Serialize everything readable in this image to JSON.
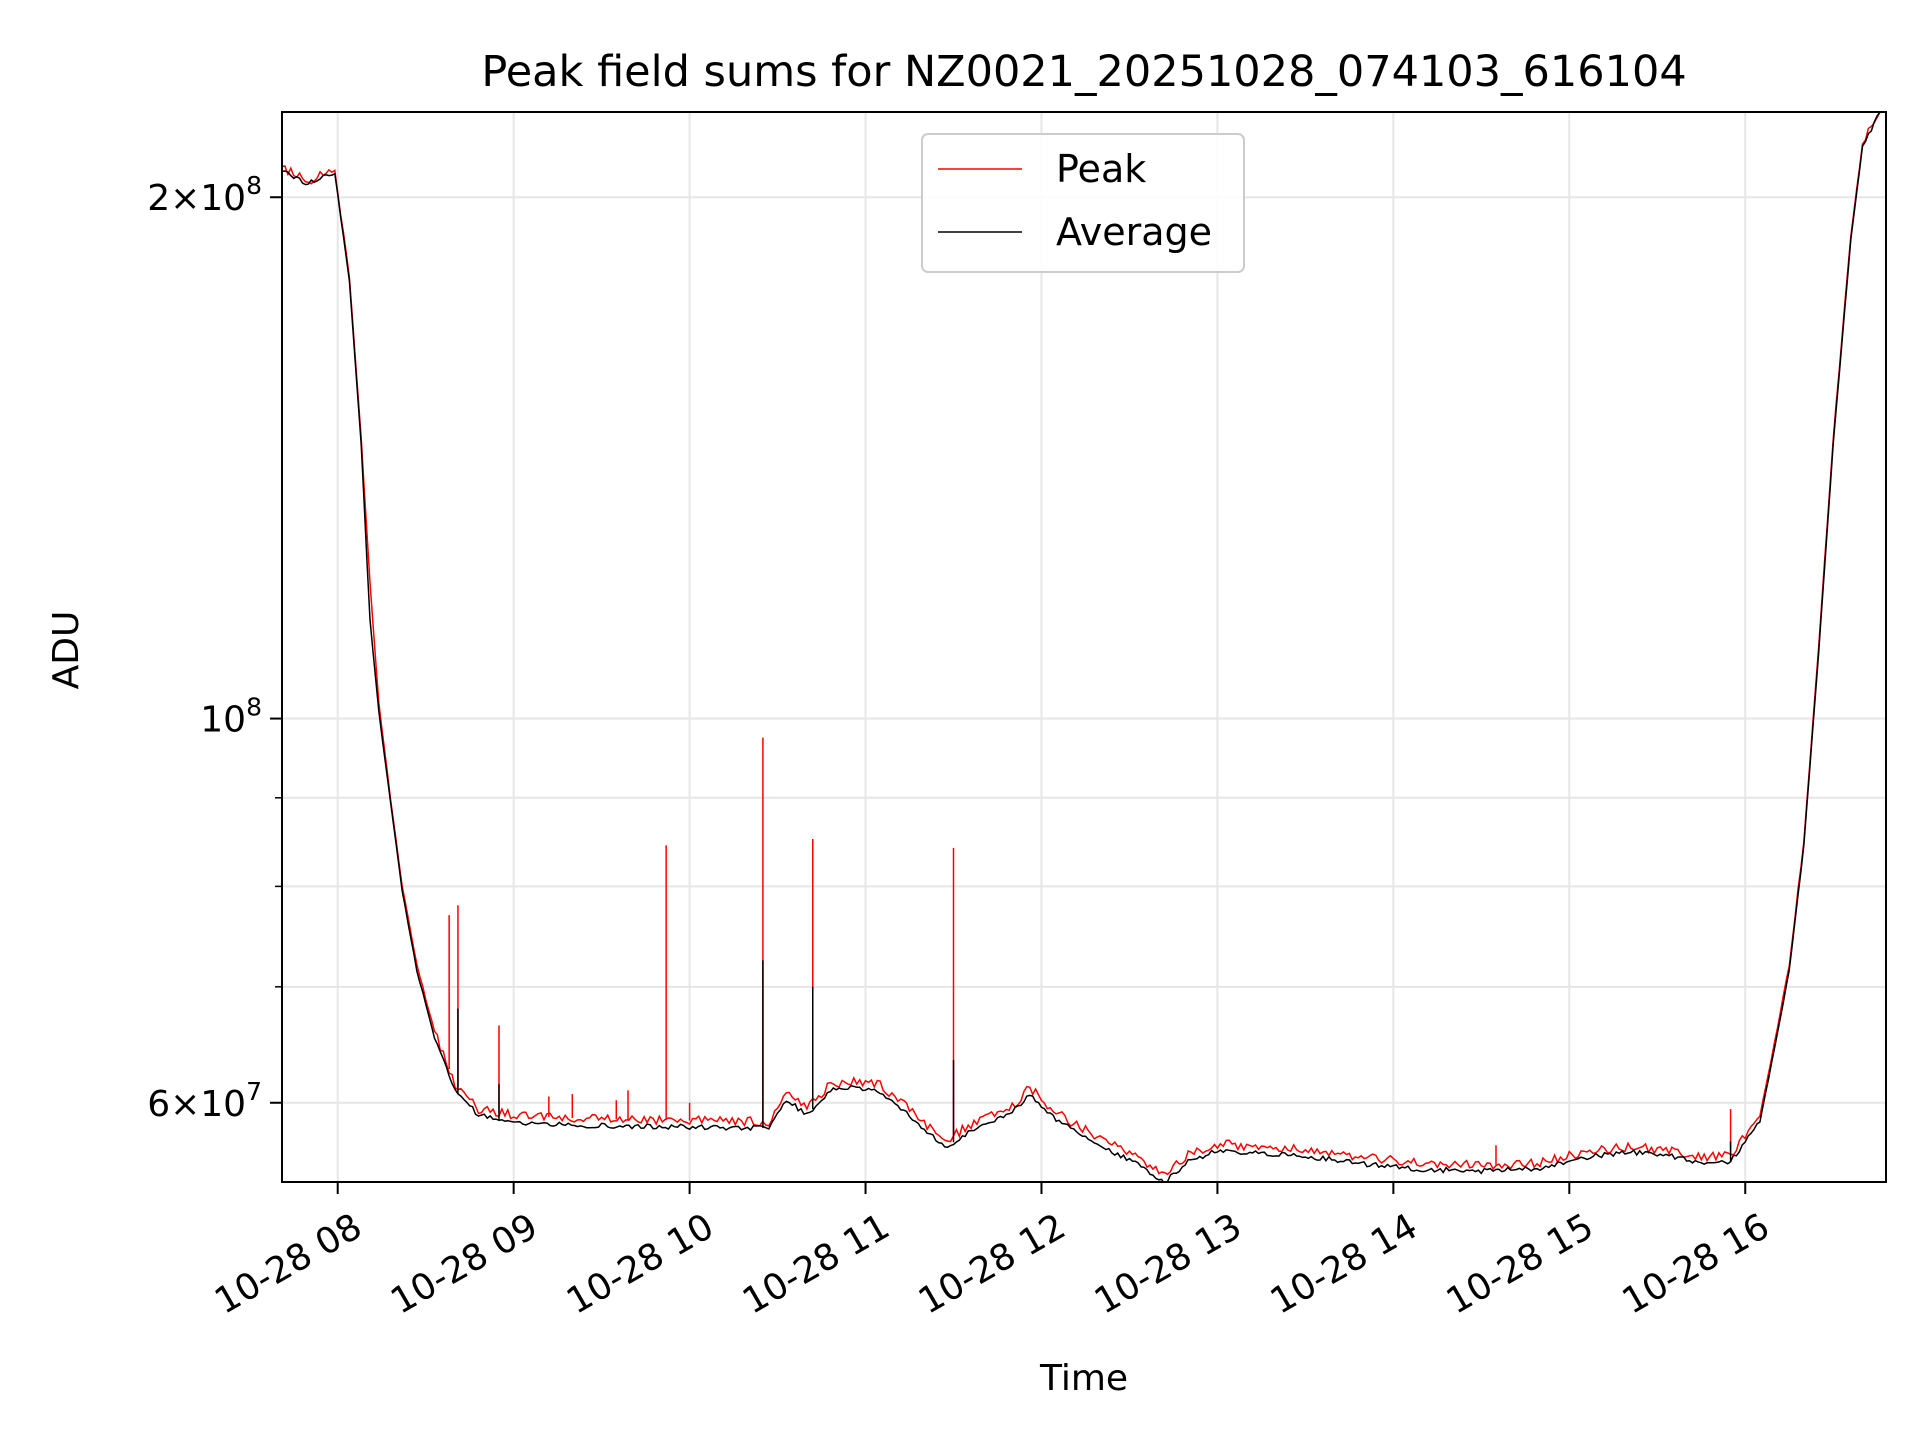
{
  "chart_data": {
    "type": "line",
    "title": "Peak field sums for NZ0021_20251028_074103_616104",
    "xlabel": "Time",
    "ylabel": "ADU",
    "x_scale": "time",
    "y_scale": "log",
    "xlim": [
      "2025-10-28 07:41",
      "2025-10-28 16:48"
    ],
    "ylim": [
      54000000,
      224000000
    ],
    "grid": true,
    "legend_placement": "upper center",
    "x_ticks": [
      {
        "value": "2025-10-28 08:00",
        "label": "10-28 08"
      },
      {
        "value": "2025-10-28 09:00",
        "label": "10-28 09"
      },
      {
        "value": "2025-10-28 10:00",
        "label": "10-28 10"
      },
      {
        "value": "2025-10-28 11:00",
        "label": "10-28 11"
      },
      {
        "value": "2025-10-28 12:00",
        "label": "10-28 12"
      },
      {
        "value": "2025-10-28 13:00",
        "label": "10-28 13"
      },
      {
        "value": "2025-10-28 14:00",
        "label": "10-28 14"
      },
      {
        "value": "2025-10-28 15:00",
        "label": "10-28 15"
      },
      {
        "value": "2025-10-28 16:00",
        "label": "10-28 16"
      }
    ],
    "y_major_ticks": [
      {
        "value": 60000000,
        "mantissa": "6",
        "exponent": "7",
        "prefix": "6×10"
      },
      {
        "value": 100000000,
        "mantissa": "",
        "exponent": "8",
        "prefix": "10"
      },
      {
        "value": 200000000,
        "mantissa": "2",
        "exponent": "8",
        "prefix": "2×10"
      }
    ],
    "y_minor_ticks": [
      70000000,
      80000000,
      90000000
    ],
    "series": [
      {
        "name": "Peak",
        "color": "#ff0000",
        "points": [
          [
            "2025-10-28 07:41",
            208000000
          ],
          [
            "2025-10-28 07:50",
            204000000
          ],
          [
            "2025-10-28 07:56",
            207000000
          ],
          [
            "2025-10-28 07:59",
            207000000
          ],
          [
            "2025-10-28 08:04",
            180000000
          ],
          [
            "2025-10-28 08:08",
            145000000
          ],
          [
            "2025-10-28 08:11",
            120000000
          ],
          [
            "2025-10-28 08:14",
            102000000
          ],
          [
            "2025-10-28 08:18",
            90000000
          ],
          [
            "2025-10-28 08:22",
            80000000
          ],
          [
            "2025-10-28 08:27",
            72000000
          ],
          [
            "2025-10-28 08:33",
            66000000
          ],
          [
            "2025-10-28 08:40",
            61500000
          ],
          [
            "2025-10-28 08:48",
            59500000
          ],
          [
            "2025-10-28 09:00",
            59000000
          ],
          [
            "2025-10-28 09:30",
            58700000
          ],
          [
            "2025-10-28 10:00",
            58600000
          ],
          [
            "2025-10-28 10:27",
            58500000
          ],
          [
            "2025-10-28 10:33",
            60800000
          ],
          [
            "2025-10-28 10:40",
            59500000
          ],
          [
            "2025-10-28 10:48",
            61500000
          ],
          [
            "2025-10-28 10:55",
            61800000
          ],
          [
            "2025-10-28 11:05",
            61400000
          ],
          [
            "2025-10-28 11:15",
            59500000
          ],
          [
            "2025-10-28 11:27",
            57000000
          ],
          [
            "2025-10-28 11:38",
            58600000
          ],
          [
            "2025-10-28 11:50",
            59700000
          ],
          [
            "2025-10-28 11:56",
            61200000
          ],
          [
            "2025-10-28 12:05",
            59200000
          ],
          [
            "2025-10-28 12:20",
            57200000
          ],
          [
            "2025-10-28 12:35",
            55500000
          ],
          [
            "2025-10-28 12:42",
            54500000
          ],
          [
            "2025-10-28 12:50",
            56000000
          ],
          [
            "2025-10-28 13:00",
            56800000
          ],
          [
            "2025-10-28 13:15",
            56600000
          ],
          [
            "2025-10-28 13:30",
            56400000
          ],
          [
            "2025-10-28 13:50",
            55800000
          ],
          [
            "2025-10-28 14:10",
            55400000
          ],
          [
            "2025-10-28 14:30",
            55200000
          ],
          [
            "2025-10-28 14:50",
            55400000
          ],
          [
            "2025-10-28 15:05",
            56200000
          ],
          [
            "2025-10-28 15:20",
            56600000
          ],
          [
            "2025-10-28 15:35",
            56300000
          ],
          [
            "2025-10-28 15:45",
            55800000
          ],
          [
            "2025-10-28 15:55",
            55900000
          ],
          [
            "2025-10-28 16:05",
            59000000
          ],
          [
            "2025-10-28 16:10",
            65000000
          ],
          [
            "2025-10-28 16:15",
            72000000
          ],
          [
            "2025-10-28 16:20",
            85000000
          ],
          [
            "2025-10-28 16:25",
            110000000
          ],
          [
            "2025-10-28 16:30",
            145000000
          ],
          [
            "2025-10-28 16:36",
            190000000
          ],
          [
            "2025-10-28 16:40",
            215000000
          ],
          [
            "2025-10-28 16:46",
            224000000
          ]
        ],
        "spikes": [
          [
            "2025-10-28 08:11",
            120000000
          ],
          [
            "2025-10-28 08:38",
            77000000
          ],
          [
            "2025-10-28 08:41",
            78000000
          ],
          [
            "2025-10-28 08:55",
            66500000
          ],
          [
            "2025-10-28 09:12",
            60500000
          ],
          [
            "2025-10-28 09:20",
            60700000
          ],
          [
            "2025-10-28 09:35",
            60200000
          ],
          [
            "2025-10-28 09:39",
            61000000
          ],
          [
            "2025-10-28 09:52",
            84500000
          ],
          [
            "2025-10-28 10:00",
            60000000
          ],
          [
            "2025-10-28 10:25",
            97500000
          ],
          [
            "2025-10-28 10:42",
            85200000
          ],
          [
            "2025-10-28 11:30",
            84200000
          ],
          [
            "2025-10-28 14:35",
            56700000
          ],
          [
            "2025-10-28 15:55",
            59500000
          ]
        ]
      },
      {
        "name": "Average",
        "color": "#000000",
        "points": [
          [
            "2025-10-28 07:41",
            207000000
          ],
          [
            "2025-10-28 07:50",
            203500000
          ],
          [
            "2025-10-28 07:56",
            206500000
          ],
          [
            "2025-10-28 07:59",
            206500000
          ],
          [
            "2025-10-28 08:04",
            179000000
          ],
          [
            "2025-10-28 08:08",
            144000000
          ],
          [
            "2025-10-28 08:11",
            114000000
          ],
          [
            "2025-10-28 08:14",
            101000000
          ],
          [
            "2025-10-28 08:18",
            89500000
          ],
          [
            "2025-10-28 08:22",
            79500000
          ],
          [
            "2025-10-28 08:27",
            71500000
          ],
          [
            "2025-10-28 08:33",
            65500000
          ],
          [
            "2025-10-28 08:40",
            61000000
          ],
          [
            "2025-10-28 08:48",
            59000000
          ],
          [
            "2025-10-28 09:00",
            58400000
          ],
          [
            "2025-10-28 09:30",
            58200000
          ],
          [
            "2025-10-28 10:00",
            58100000
          ],
          [
            "2025-10-28 10:27",
            58000000
          ],
          [
            "2025-10-28 10:33",
            60300000
          ],
          [
            "2025-10-28 10:40",
            59000000
          ],
          [
            "2025-10-28 10:48",
            61000000
          ],
          [
            "2025-10-28 10:55",
            61200000
          ],
          [
            "2025-10-28 11:05",
            60800000
          ],
          [
            "2025-10-28 11:15",
            59000000
          ],
          [
            "2025-10-28 11:27",
            56500000
          ],
          [
            "2025-10-28 11:38",
            58100000
          ],
          [
            "2025-10-28 11:50",
            59200000
          ],
          [
            "2025-10-28 11:56",
            60700000
          ],
          [
            "2025-10-28 12:05",
            58700000
          ],
          [
            "2025-10-28 12:20",
            56700000
          ],
          [
            "2025-10-28 12:35",
            55000000
          ],
          [
            "2025-10-28 12:42",
            54000000
          ],
          [
            "2025-10-28 12:50",
            55500000
          ],
          [
            "2025-10-28 13:00",
            56300000
          ],
          [
            "2025-10-28 13:15",
            56100000
          ],
          [
            "2025-10-28 13:30",
            55900000
          ],
          [
            "2025-10-28 13:50",
            55300000
          ],
          [
            "2025-10-28 14:10",
            54900000
          ],
          [
            "2025-10-28 14:30",
            54800000
          ],
          [
            "2025-10-28 14:50",
            55000000
          ],
          [
            "2025-10-28 15:05",
            55800000
          ],
          [
            "2025-10-28 15:20",
            56200000
          ],
          [
            "2025-10-28 15:35",
            55900000
          ],
          [
            "2025-10-28 15:45",
            55400000
          ],
          [
            "2025-10-28 15:55",
            55500000
          ],
          [
            "2025-10-28 16:05",
            58500000
          ],
          [
            "2025-10-28 16:10",
            64500000
          ],
          [
            "2025-10-28 16:15",
            71500000
          ],
          [
            "2025-10-28 16:20",
            84500000
          ],
          [
            "2025-10-28 16:25",
            109000000
          ],
          [
            "2025-10-28 16:30",
            144000000
          ],
          [
            "2025-10-28 16:36",
            189000000
          ],
          [
            "2025-10-28 16:40",
            214000000
          ],
          [
            "2025-10-28 16:46",
            224000000
          ]
        ],
        "spikes": [
          [
            "2025-10-28 08:41",
            68000000
          ],
          [
            "2025-10-28 08:55",
            61500000
          ],
          [
            "2025-10-28 10:25",
            72500000
          ],
          [
            "2025-10-28 10:42",
            70000000
          ],
          [
            "2025-10-28 11:30",
            63500000
          ],
          [
            "2025-10-28 15:55",
            57000000
          ]
        ]
      }
    ]
  }
}
